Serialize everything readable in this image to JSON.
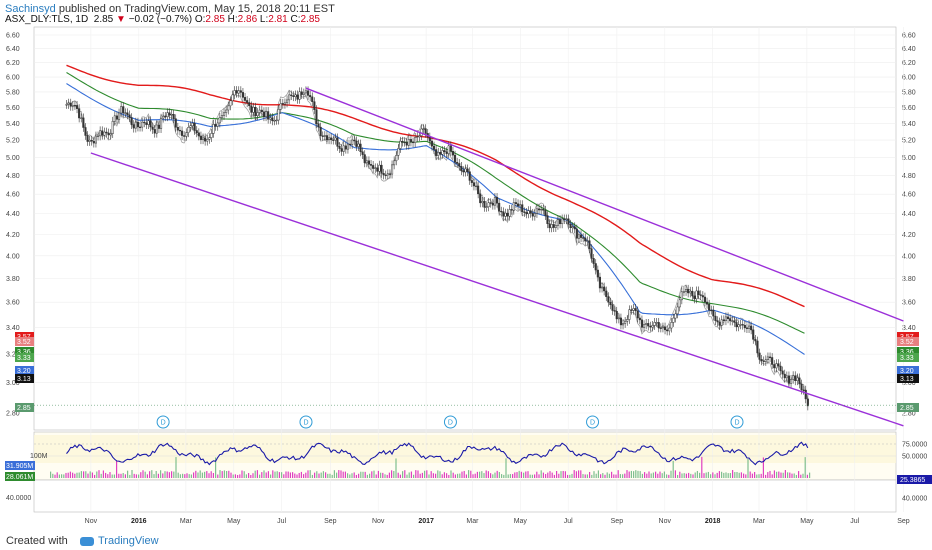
{
  "header": {
    "author": "Sachinsyd",
    "published": " published on TradingView.com, May 15, 2018 20:11 EST",
    "symbol": "ASX_DLY:TLS, 1D",
    "last": "2.85",
    "change": "−0.02 (−0.7%)",
    "ohlc_o_label": "O:",
    "ohlc_o": "2.85",
    "ohlc_h_label": "H:",
    "ohlc_h": "2.86",
    "ohlc_l_label": "L:",
    "ohlc_l": "2.81",
    "ohlc_c_label": "C:",
    "ohlc_c": "2.85"
  },
  "footer": {
    "created_with": "Created with",
    "brand": "TradingView"
  },
  "colors": {
    "ema_red": "#e21b1b",
    "ema_red_light": "#e88080",
    "ema_green": "#2e8b2e",
    "ema_blue": "#3a6fd8",
    "ema_lightblue": "#6fa6e6",
    "price_shadow": "#a0a0a0",
    "channel": "#9b30d9",
    "rsi_line": "#1a1aa8",
    "volume": "#e040c0",
    "candle": "#333333",
    "dividend": "#2f9bd6"
  },
  "chart_data": {
    "type": "line",
    "title": "",
    "xlabel": "",
    "ylabel": "",
    "ylim": [
      2.85,
      6.6
    ],
    "y_scale": "log",
    "y_ticks": [
      "6.60",
      "6.40",
      "6.20",
      "6.00",
      "5.80",
      "5.60",
      "5.40",
      "5.20",
      "5.00",
      "4.80",
      "4.60",
      "4.40",
      "4.20",
      "4.00",
      "3.80",
      "3.60",
      "3.40",
      "3.20",
      "3.00",
      "2.80"
    ],
    "x_ticks": [
      "Nov",
      "2016",
      "Mar",
      "May",
      "Jul",
      "Sep",
      "Nov",
      "2017",
      "Mar",
      "May",
      "Jul",
      "Sep",
      "Nov",
      "2018",
      "Mar",
      "May",
      "Jul",
      "Sep"
    ],
    "dividend_marker": "D",
    "dividend_dates": [
      "2016-02",
      "2016-08",
      "2017-02",
      "2017-08",
      "2018-02"
    ],
    "price_labels": [
      {
        "value": "3.57",
        "color": "#e21b1b"
      },
      {
        "value": "3.52",
        "color": "#e88080"
      },
      {
        "value": "3.36",
        "color": "#2e8b2e"
      },
      {
        "value": "3.33",
        "color": "#4ca64c"
      },
      {
        "value": "3.20",
        "color": "#3a6fd8"
      },
      {
        "value": "3.13",
        "color": "#111111"
      },
      {
        "value": "2.85",
        "color": "#5a9a6e"
      }
    ],
    "series": [
      {
        "name": "close",
        "values": [
          [
            "2015-10",
            5.6
          ],
          [
            "2015-11",
            5.25
          ],
          [
            "2015-12",
            5.45
          ],
          [
            "2016-01",
            5.35
          ],
          [
            "2016-02",
            5.55
          ],
          [
            "2016-03",
            5.2
          ],
          [
            "2016-04",
            5.35
          ],
          [
            "2016-05",
            5.7
          ],
          [
            "2016-06",
            5.55
          ],
          [
            "2016-07",
            5.6
          ],
          [
            "2016-08",
            5.75
          ],
          [
            "2016-09",
            5.25
          ],
          [
            "2016-10",
            5.05
          ],
          [
            "2016-11",
            4.9
          ],
          [
            "2016-12",
            5.05
          ],
          [
            "2017-01",
            5.25
          ],
          [
            "2017-02",
            5.05
          ],
          [
            "2017-03",
            4.6
          ],
          [
            "2017-04",
            4.55
          ],
          [
            "2017-05",
            4.35
          ],
          [
            "2017-06",
            4.45
          ],
          [
            "2017-07",
            4.3
          ],
          [
            "2017-08",
            3.95
          ],
          [
            "2017-09",
            3.5
          ],
          [
            "2017-10",
            3.4
          ],
          [
            "2017-11",
            3.45
          ],
          [
            "2017-12",
            3.65
          ],
          [
            "2018-01",
            3.55
          ],
          [
            "2018-02",
            3.45
          ],
          [
            "2018-03",
            3.2
          ],
          [
            "2018-04",
            3.12
          ],
          [
            "2018-05",
            2.85
          ]
        ]
      },
      {
        "name": "ema_slow",
        "values": [
          [
            "2015-10",
            6.15
          ],
          [
            "2016-01",
            5.9
          ],
          [
            "2016-04",
            5.75
          ],
          [
            "2016-07",
            5.65
          ],
          [
            "2016-10",
            5.45
          ],
          [
            "2017-01",
            5.25
          ],
          [
            "2017-04",
            4.95
          ],
          [
            "2017-07",
            4.55
          ],
          [
            "2017-10",
            4.1
          ],
          [
            "2018-01",
            3.8
          ],
          [
            "2018-05",
            3.57
          ]
        ]
      },
      {
        "name": "ema_mid",
        "values": [
          [
            "2015-10",
            6.05
          ],
          [
            "2016-01",
            5.6
          ],
          [
            "2016-04",
            5.45
          ],
          [
            "2016-07",
            5.55
          ],
          [
            "2016-10",
            5.25
          ],
          [
            "2017-01",
            5.2
          ],
          [
            "2017-04",
            4.75
          ],
          [
            "2017-07",
            4.35
          ],
          [
            "2017-10",
            3.75
          ],
          [
            "2018-01",
            3.6
          ],
          [
            "2018-05",
            3.36
          ]
        ]
      },
      {
        "name": "ema_fast",
        "values": [
          [
            "2015-10",
            5.9
          ],
          [
            "2016-01",
            5.45
          ],
          [
            "2016-04",
            5.35
          ],
          [
            "2016-07",
            5.55
          ],
          [
            "2016-10",
            5.1
          ],
          [
            "2017-01",
            5.15
          ],
          [
            "2017-04",
            4.55
          ],
          [
            "2017-07",
            4.35
          ],
          [
            "2017-10",
            3.5
          ],
          [
            "2018-01",
            3.55
          ],
          [
            "2018-05",
            3.2
          ]
        ]
      },
      {
        "name": "channel_upper",
        "values": [
          [
            "2016-08",
            5.85
          ],
          [
            "2018-09",
            3.45
          ]
        ]
      },
      {
        "name": "channel_lower",
        "values": [
          [
            "2015-11",
            5.05
          ],
          [
            "2018-09",
            2.72
          ]
        ]
      }
    ],
    "rsi": {
      "labels": [
        "75.0000",
        "50.0000",
        "40.0000"
      ],
      "last": "25.3865",
      "left_labels": [
        "100M",
        "31.905M",
        "28.061M"
      ]
    }
  }
}
